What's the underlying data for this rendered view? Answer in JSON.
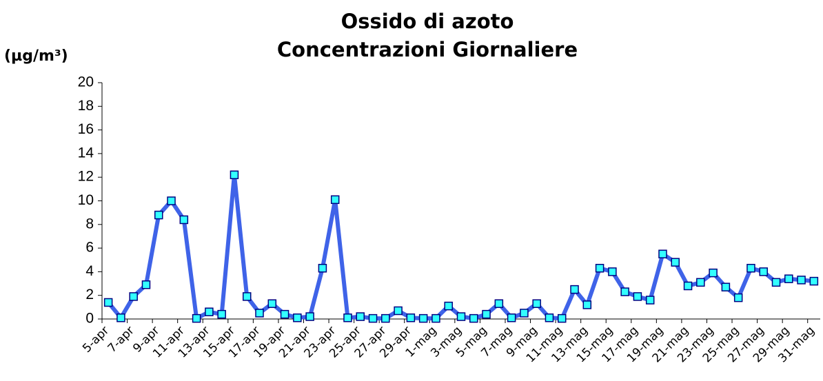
{
  "chart_data": {
    "type": "line",
    "title": "Ossido di azoto",
    "subtitle": "Concentrazioni Giornaliere",
    "y_label": "(µg/m³)",
    "categories": [
      "5-apr",
      null,
      "7-apr",
      null,
      "9-apr",
      null,
      "11-apr",
      null,
      "13-apr",
      null,
      "15-apr",
      null,
      "17-apr",
      null,
      "19-apr",
      null,
      "21-apr",
      null,
      "23-apr",
      null,
      "25-apr",
      null,
      "27-apr",
      null,
      "29-apr",
      null,
      "1-mag",
      null,
      "3-mag",
      null,
      "5-mag",
      null,
      "7-mag",
      null,
      "9-mag",
      null,
      "11-mag",
      null,
      "13-mag",
      null,
      "15-mag",
      null,
      "17-mag",
      null,
      "19-mag",
      null,
      "21-mag",
      null,
      "23-mag",
      null,
      "25-mag",
      null,
      "27-mag",
      null,
      "29-mag",
      null,
      "31-mag"
    ],
    "values": [
      1.4,
      0.1,
      1.9,
      2.9,
      8.8,
      10.0,
      8.4,
      0.05,
      0.6,
      0.4,
      12.2,
      1.9,
      0.5,
      1.3,
      0.4,
      0.1,
      0.2,
      4.3,
      10.1,
      0.1,
      0.2,
      0.05,
      0.05,
      0.7,
      0.1,
      0.05,
      0.05,
      1.1,
      0.2,
      0.05,
      0.4,
      1.3,
      0.1,
      0.5,
      1.3,
      0.1,
      0.05,
      2.5,
      1.2,
      4.3,
      4.0,
      2.3,
      1.9,
      1.6,
      5.5,
      4.8,
      2.8,
      3.1,
      3.9,
      2.7,
      1.8,
      4.3,
      4.0,
      3.1,
      3.4,
      3.3,
      3.2
    ],
    "color": "#3f63e8",
    "marker_color": "#33ffff",
    "ylim": [
      0,
      20
    ],
    "yticks": [
      0,
      2,
      4,
      6,
      8,
      10,
      12,
      14,
      16,
      18,
      20
    ],
    "grid": false
  }
}
